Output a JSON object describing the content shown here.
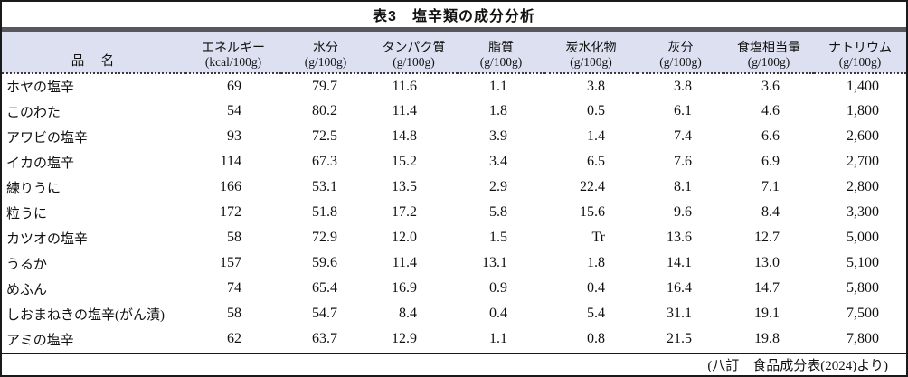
{
  "title": "表3　塩辛類の成分分析",
  "table": {
    "name_header": "品　名",
    "columns": [
      {
        "label": "エネルギー",
        "unit": "(kcal/100g)"
      },
      {
        "label": "水分",
        "unit": "(g/100g)"
      },
      {
        "label": "タンパク質",
        "unit": "(g/100g)"
      },
      {
        "label": "脂質",
        "unit": "(g/100g)"
      },
      {
        "label": "炭水化物",
        "unit": "(g/100g)"
      },
      {
        "label": "灰分",
        "unit": "(g/100g)"
      },
      {
        "label": "食塩相当量",
        "unit": "(g/100g)"
      },
      {
        "label": "ナトリウム",
        "unit": "(g/100g)"
      }
    ],
    "rows": [
      {
        "name": "ホヤの塩辛",
        "values": [
          "69",
          "79.7",
          "11.6",
          "1.1",
          "3.8",
          "3.8",
          "3.6",
          "1,400"
        ]
      },
      {
        "name": "このわた",
        "values": [
          "54",
          "80.2",
          "11.4",
          "1.8",
          "0.5",
          "6.1",
          "4.6",
          "1,800"
        ]
      },
      {
        "name": "アワビの塩辛",
        "values": [
          "93",
          "72.5",
          "14.8",
          "3.9",
          "1.4",
          "7.4",
          "6.6",
          "2,600"
        ]
      },
      {
        "name": "イカの塩辛",
        "values": [
          "114",
          "67.3",
          "15.2",
          "3.4",
          "6.5",
          "7.6",
          "6.9",
          "2,700"
        ]
      },
      {
        "name": "練りうに",
        "values": [
          "166",
          "53.1",
          "13.5",
          "2.9",
          "22.4",
          "8.1",
          "7.1",
          "2,800"
        ]
      },
      {
        "name": "粒うに",
        "values": [
          "172",
          "51.8",
          "17.2",
          "5.8",
          "15.6",
          "9.6",
          "8.4",
          "3,300"
        ]
      },
      {
        "name": "カツオの塩辛",
        "values": [
          "58",
          "72.9",
          "12.0",
          "1.5",
          "Tr",
          "13.6",
          "12.7",
          "5,000"
        ]
      },
      {
        "name": "うるか",
        "values": [
          "157",
          "59.6",
          "11.4",
          "13.1",
          "1.8",
          "14.1",
          "13.0",
          "5,100"
        ]
      },
      {
        "name": "めふん",
        "values": [
          "74",
          "65.4",
          "16.9",
          "0.9",
          "0.4",
          "16.4",
          "14.7",
          "5,800"
        ]
      },
      {
        "name": "しおまねきの塩辛(がん漬)",
        "values": [
          "58",
          "54.7",
          "8.4",
          "0.4",
          "5.4",
          "31.1",
          "19.1",
          "7,500"
        ]
      },
      {
        "name": "アミの塩辛",
        "values": [
          "62",
          "63.7",
          "12.9",
          "1.1",
          "0.8",
          "21.5",
          "19.8",
          "7,800"
        ]
      }
    ],
    "source": "(八訂　食品成分表(2024)より)"
  },
  "colors": {
    "header_bg": "#dce0f1",
    "divider_band": "#57575e",
    "border": "#1a1a1a"
  }
}
